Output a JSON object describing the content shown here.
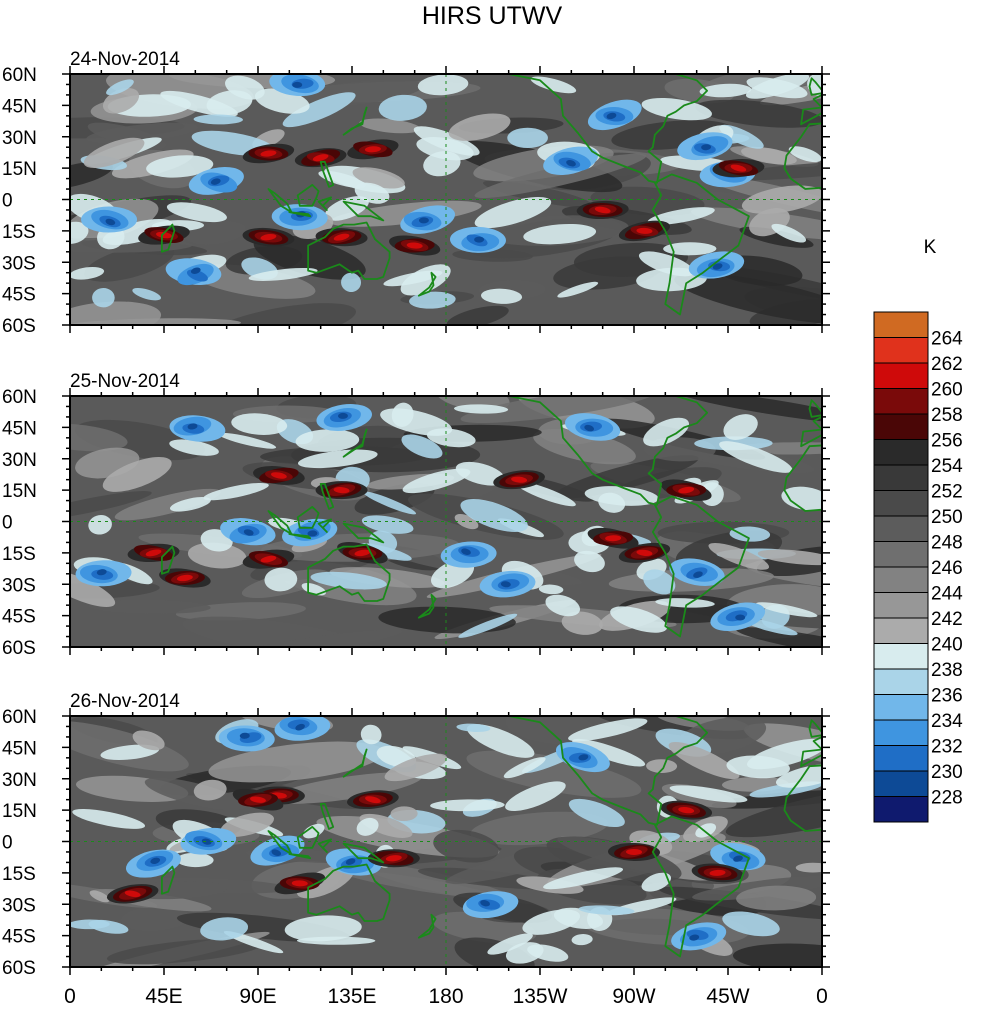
{
  "chart_data": {
    "type": "heatmap",
    "title": "HIRS UTWV",
    "units": "K",
    "panels": [
      {
        "date": "24-Nov-2014",
        "warm_features": [
          [
            95,
            22
          ],
          [
            120,
            20
          ],
          [
            145,
            24
          ],
          [
            45,
            -17
          ],
          [
            95,
            -18
          ],
          [
            130,
            -18
          ],
          [
            165,
            -22
          ],
          [
            -105,
            -5
          ],
          [
            -85,
            -15
          ],
          [
            -40,
            15
          ]
        ],
        "cool_features": [
          [
            70,
            8
          ],
          [
            110,
            -8
          ],
          [
            20,
            -10
          ],
          [
            170,
            -10
          ],
          [
            -165,
            -20
          ],
          [
            -120,
            18
          ],
          [
            -55,
            25
          ],
          [
            -45,
            12
          ],
          [
            110,
            55
          ],
          [
            -50,
            -32
          ],
          [
            60,
            -35
          ],
          [
            -100,
            40
          ]
        ]
      },
      {
        "date": "25-Nov-2014",
        "warm_features": [
          [
            100,
            22
          ],
          [
            130,
            15
          ],
          [
            40,
            -15
          ],
          [
            95,
            -18
          ],
          [
            55,
            -27
          ],
          [
            140,
            -15
          ],
          [
            -100,
            -8
          ],
          [
            -85,
            -15
          ],
          [
            -65,
            15
          ],
          [
            -145,
            20
          ]
        ],
        "cool_features": [
          [
            60,
            45
          ],
          [
            85,
            -5
          ],
          [
            115,
            -5
          ],
          [
            -170,
            -15
          ],
          [
            -150,
            -30
          ],
          [
            -110,
            45
          ],
          [
            -60,
            -25
          ],
          [
            15,
            -25
          ],
          [
            130,
            50
          ],
          [
            -40,
            -45
          ]
        ]
      },
      {
        "date": "26-Nov-2014",
        "warm_features": [
          [
            100,
            22
          ],
          [
            90,
            20
          ],
          [
            145,
            20
          ],
          [
            30,
            -25
          ],
          [
            110,
            -20
          ],
          [
            155,
            -8
          ],
          [
            -90,
            -5
          ],
          [
            -65,
            15
          ],
          [
            -50,
            -15
          ]
        ],
        "cool_features": [
          [
            85,
            50
          ],
          [
            65,
            0
          ],
          [
            100,
            -5
          ],
          [
            135,
            -10
          ],
          [
            -115,
            40
          ],
          [
            -40,
            -8
          ],
          [
            -60,
            -45
          ],
          [
            40,
            -10
          ],
          [
            -160,
            -30
          ],
          [
            110,
            55
          ]
        ]
      }
    ],
    "x_tick_labels": [
      "0",
      "45E",
      "90E",
      "135E",
      "180",
      "135W",
      "90W",
      "45W",
      "0"
    ],
    "y_tick_labels": [
      "60N",
      "45N",
      "30N",
      "15N",
      "0",
      "15S",
      "30S",
      "45S",
      "60S"
    ],
    "xlim": [
      0,
      360
    ],
    "ylim": [
      -60,
      60
    ],
    "colorbar": {
      "label": "K",
      "tick_labels": [
        "264",
        "262",
        "260",
        "258",
        "256",
        "254",
        "252",
        "250",
        "248",
        "246",
        "244",
        "242",
        "240",
        "238",
        "236",
        "234",
        "232",
        "230",
        "228"
      ],
      "levels": [
        228,
        230,
        232,
        234,
        236,
        238,
        240,
        242,
        244,
        246,
        248,
        250,
        252,
        254,
        256,
        258,
        260,
        262,
        264
      ],
      "colors": [
        "#0f1a6e",
        "#0d4a96",
        "#1f6ec6",
        "#3f95e0",
        "#71b7ea",
        "#aad4e8",
        "#d8ecee",
        "#ababab",
        "#979797",
        "#828282",
        "#6f6f6f",
        "#5c5c5c",
        "#4a4a4a",
        "#393939",
        "#2a2a2a",
        "#4a0606",
        "#7a0a0a",
        "#cf0a0a",
        "#e0321c",
        "#d06a22"
      ]
    },
    "coastline_color": "#1a8a1a"
  }
}
